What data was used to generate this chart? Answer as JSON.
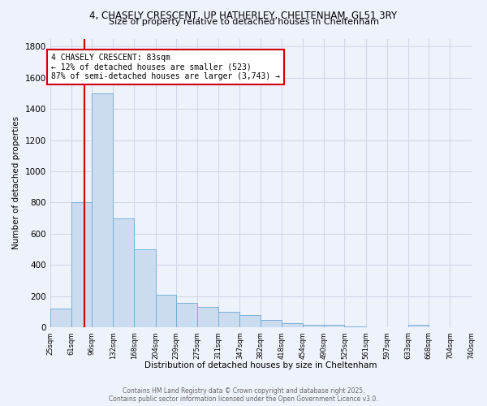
{
  "title_line1": "4, CHASELY CRESCENT, UP HATHERLEY, CHELTENHAM, GL51 3RY",
  "title_line2": "Size of property relative to detached houses in Cheltenham",
  "xlabel": "Distribution of detached houses by size in Cheltenham",
  "ylabel": "Number of detached properties",
  "bin_edges": [
    25,
    61,
    96,
    132,
    168,
    204,
    239,
    275,
    311,
    347,
    382,
    418,
    454,
    490,
    525,
    561,
    597,
    633,
    668,
    704,
    740
  ],
  "bar_heights": [
    120,
    800,
    1500,
    700,
    500,
    210,
    160,
    130,
    100,
    80,
    50,
    30,
    20,
    15,
    5,
    3,
    3,
    15,
    3,
    3
  ],
  "bar_color": "#ccdcf0",
  "bar_edge_color": "#6aaad4",
  "bar_edge_width": 0.6,
  "property_size": 83,
  "red_line_color": "#cc0000",
  "annotation_text": "4 CHASELY CRESCENT: 83sqm\n← 12% of detached houses are smaller (523)\n87% of semi-detached houses are larger (3,743) →",
  "annotation_box_color": "#ffffff",
  "annotation_box_edge": "#cc0000",
  "ylim": [
    0,
    1850
  ],
  "yticks": [
    0,
    200,
    400,
    600,
    800,
    1000,
    1200,
    1400,
    1600,
    1800
  ],
  "tick_labels": [
    "25sqm",
    "61sqm",
    "96sqm",
    "132sqm",
    "168sqm",
    "204sqm",
    "239sqm",
    "275sqm",
    "311sqm",
    "347sqm",
    "382sqm",
    "418sqm",
    "454sqm",
    "490sqm",
    "525sqm",
    "561sqm",
    "597sqm",
    "633sqm",
    "668sqm",
    "704sqm",
    "740sqm"
  ],
  "footer_text": "Contains HM Land Registry data © Crown copyright and database right 2025.\nContains public sector information licensed under the Open Government Licence v3.0.",
  "bg_color": "#eef2fb",
  "grid_color": "#d0d8e8"
}
